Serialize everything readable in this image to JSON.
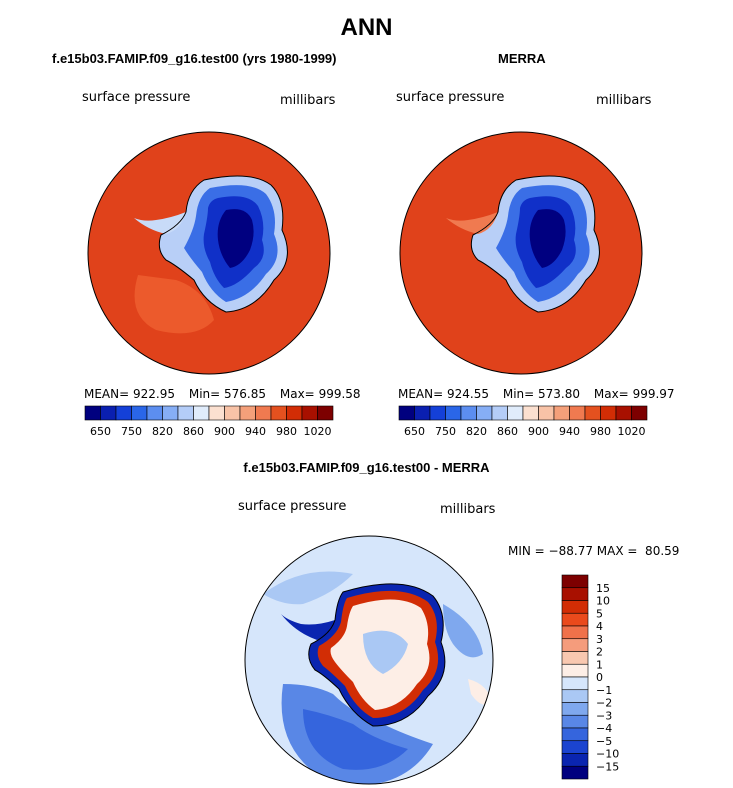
{
  "page_title": "ANN",
  "panel_left": {
    "title": "f.e15b03.FAMIP.f09_g16.test00 (yrs 1980-1999)",
    "variable": "surface pressure",
    "units": "millibars",
    "stats": {
      "mean_label": "MEAN=",
      "mean": "922.95",
      "min_label": "Min=",
      "min": "576.85",
      "max_label": "Max=",
      "max": "999.58"
    }
  },
  "panel_right": {
    "title": "MERRA",
    "variable": "surface pressure",
    "units": "millibars",
    "stats": {
      "mean_label": "MEAN=",
      "mean": "924.55",
      "min_label": "Min=",
      "min": "573.80",
      "max_label": "Max=",
      "max": "999.97"
    }
  },
  "panel_diff": {
    "title": "f.e15b03.FAMIP.f09_g16.test00 - MERRA",
    "variable": "surface pressure",
    "units": "millibars",
    "minmax": "MIN = −88.77 MAX =  80.59"
  },
  "colorbar_top": {
    "colors": [
      "#00007f",
      "#0a1fb0",
      "#1440d8",
      "#2a66e8",
      "#5c8ef0",
      "#86aef5",
      "#b4cdf8",
      "#e0ecfb",
      "#fbe0d0",
      "#f8c3a7",
      "#f4a07a",
      "#f07a50",
      "#e4511f",
      "#d22d05",
      "#a81000",
      "#7d0000"
    ],
    "labels": [
      "650",
      "750",
      "820",
      "860",
      "900",
      "940",
      "980",
      "1020"
    ]
  },
  "colorbar_diff": {
    "colors": [
      "#7d0000",
      "#a81000",
      "#d22d05",
      "#ea4a1c",
      "#f0714a",
      "#f59c7c",
      "#f9c8b0",
      "#fdeee6",
      "#d6e6fb",
      "#aac8f4",
      "#7fa8ee",
      "#5987e6",
      "#3565dd",
      "#1b44d0",
      "#0a25b0",
      "#00007f"
    ],
    "labels": [
      "15",
      "10",
      "5",
      "4",
      "3",
      "2",
      "1",
      "0",
      "−1",
      "−2",
      "−3",
      "−4",
      "−5",
      "−10",
      "−15"
    ]
  }
}
